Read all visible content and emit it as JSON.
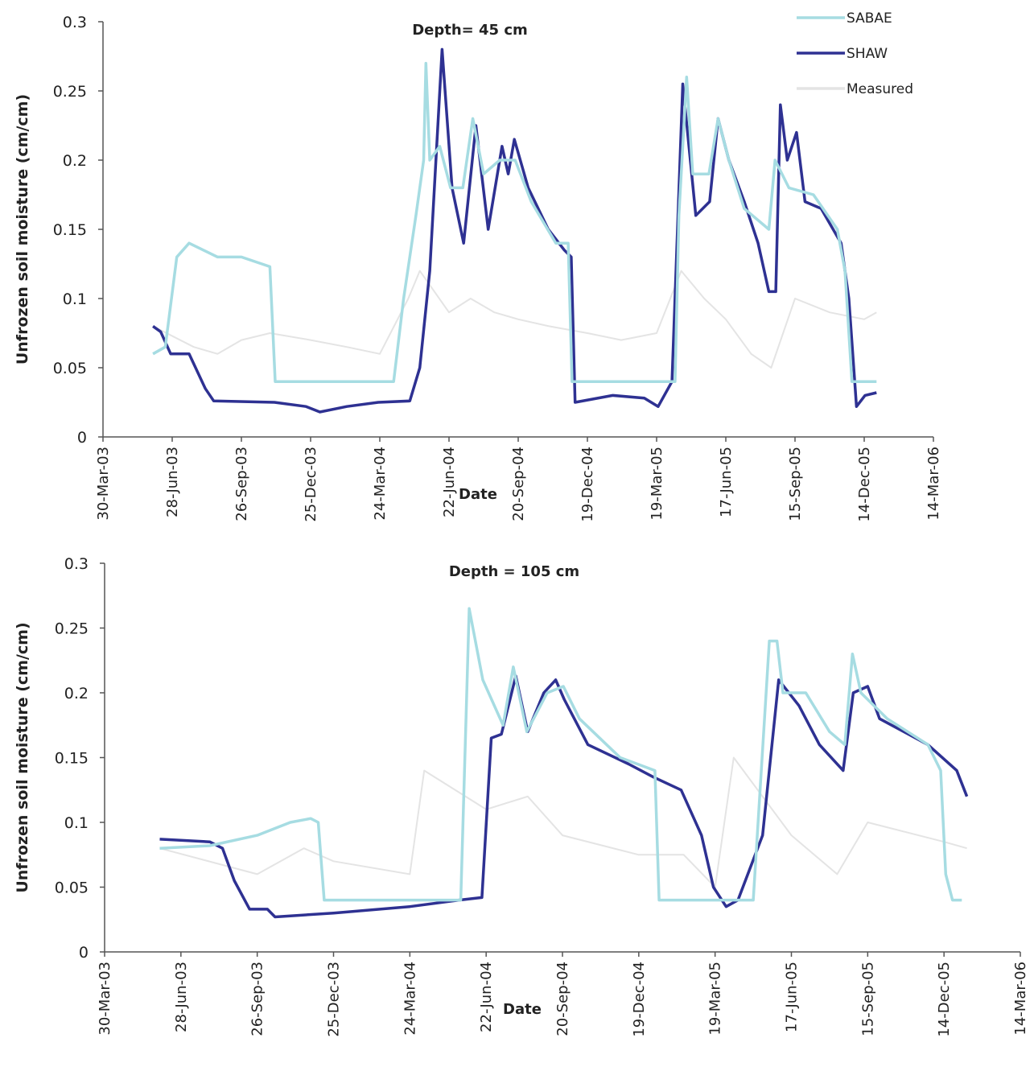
{
  "chart_data": [
    {
      "type": "line",
      "title": "Depth= 45 cm",
      "xlabel": "Date",
      "ylabel": "Unfrozen soil moisture (cm/cm)",
      "xlim": [
        "2003-03-30",
        "2006-03-14"
      ],
      "xticks": [
        {
          "value": "2003-03-30",
          "label": "30-Mar-03"
        },
        {
          "value": "2003-06-28",
          "label": "28-Jun-03"
        },
        {
          "value": "2003-09-26",
          "label": "26-Sep-03"
        },
        {
          "value": "2003-12-25",
          "label": "25-Dec-03"
        },
        {
          "value": "2004-03-24",
          "label": "24-Mar-04"
        },
        {
          "value": "2004-06-22",
          "label": "22-Jun-04"
        },
        {
          "value": "2004-09-20",
          "label": "20-Sep-04"
        },
        {
          "value": "2004-12-19",
          "label": "19-Dec-04"
        },
        {
          "value": "2005-03-19",
          "label": "19-Mar-05"
        },
        {
          "value": "2005-06-17",
          "label": "17-Jun-05"
        },
        {
          "value": "2005-09-15",
          "label": "15-Sep-05"
        },
        {
          "value": "2005-12-14",
          "label": "14-Dec-05"
        },
        {
          "value": "2006-03-14",
          "label": "14-Mar-06"
        }
      ],
      "ylim": [
        0,
        0.3
      ],
      "yticks": [
        0,
        0.05,
        0.1,
        0.15,
        0.2,
        0.25,
        0.3
      ],
      "legend": "top-right",
      "series": [
        {
          "name": "SABAE",
          "color": "#a6dce2",
          "x": [
            "2003-06-03",
            "2003-06-19",
            "2003-07-04",
            "2003-07-20",
            "2003-08-26",
            "2003-09-26",
            "2003-11-02",
            "2003-11-09",
            "2004-01-09",
            "2004-04-11",
            "2004-04-24",
            "2004-05-10",
            "2004-05-20",
            "2004-05-23",
            "2004-05-28",
            "2004-06-10",
            "2004-06-24",
            "2004-07-10",
            "2004-07-23",
            "2004-08-06",
            "2004-08-27",
            "2004-09-16",
            "2004-10-07",
            "2004-11-08",
            "2004-11-24",
            "2004-11-29",
            "2005-02-11",
            "2005-04-12",
            "2005-04-17",
            "2005-04-27",
            "2005-05-05",
            "2005-05-26",
            "2005-06-07",
            "2005-06-21",
            "2005-07-11",
            "2005-08-12",
            "2005-08-20",
            "2005-09-07",
            "2005-10-09",
            "2005-11-09",
            "2005-11-19",
            "2005-11-28",
            "2005-12-30"
          ],
          "values": [
            0.06,
            0.065,
            0.13,
            0.14,
            0.13,
            0.13,
            0.123,
            0.04,
            0.04,
            0.04,
            0.1,
            0.16,
            0.2,
            0.27,
            0.2,
            0.21,
            0.18,
            0.18,
            0.23,
            0.19,
            0.2,
            0.2,
            0.17,
            0.14,
            0.14,
            0.04,
            0.04,
            0.04,
            0.16,
            0.26,
            0.19,
            0.19,
            0.23,
            0.2,
            0.165,
            0.15,
            0.2,
            0.18,
            0.175,
            0.15,
            0.12,
            0.04,
            0.04
          ]
        },
        {
          "name": "SHAW",
          "color": "#2e3192",
          "x": [
            "2003-06-03",
            "2003-06-13",
            "2003-06-26",
            "2003-07-20",
            "2003-08-10",
            "2003-08-21",
            "2003-11-08",
            "2003-12-19",
            "2004-01-06",
            "2004-02-10",
            "2004-03-22",
            "2004-05-02",
            "2004-05-15",
            "2004-05-28",
            "2004-06-13",
            "2004-06-26",
            "2004-07-11",
            "2004-07-27",
            "2004-08-12",
            "2004-08-30",
            "2004-09-07",
            "2004-09-15",
            "2004-10-03",
            "2004-10-29",
            "2004-11-19",
            "2004-11-28",
            "2004-12-03",
            "2005-01-21",
            "2005-03-03",
            "2005-03-21",
            "2005-04-08",
            "2005-04-22",
            "2005-05-09",
            "2005-05-27",
            "2005-06-07",
            "2005-06-21",
            "2005-07-11",
            "2005-07-29",
            "2005-08-12",
            "2005-08-21",
            "2005-08-27",
            "2005-09-05",
            "2005-09-17",
            "2005-09-28",
            "2005-10-19",
            "2005-11-14",
            "2005-11-24",
            "2005-12-04",
            "2005-12-15",
            "2005-12-30"
          ],
          "values": [
            0.08,
            0.076,
            0.06,
            0.06,
            0.035,
            0.026,
            0.025,
            0.022,
            0.018,
            0.022,
            0.025,
            0.026,
            0.05,
            0.12,
            0.28,
            0.18,
            0.14,
            0.225,
            0.15,
            0.21,
            0.19,
            0.215,
            0.18,
            0.15,
            0.135,
            0.13,
            0.025,
            0.03,
            0.028,
            0.022,
            0.04,
            0.255,
            0.16,
            0.17,
            0.23,
            0.2,
            0.17,
            0.14,
            0.105,
            0.105,
            0.24,
            0.2,
            0.22,
            0.17,
            0.165,
            0.14,
            0.1,
            0.022,
            0.03,
            0.032
          ]
        },
        {
          "name": "Measured",
          "color": "#e4e4e4",
          "x": [
            "2003-06-03",
            "2003-07-26",
            "2003-08-26",
            "2003-09-26",
            "2003-11-02",
            "2003-12-25",
            "2004-02-10",
            "2004-03-24",
            "2004-04-30",
            "2004-05-15",
            "2004-06-22",
            "2004-07-20",
            "2004-08-20",
            "2004-09-20",
            "2004-10-30",
            "2004-12-19",
            "2005-02-01",
            "2005-03-19",
            "2005-04-20",
            "2005-05-20",
            "2005-06-17",
            "2005-07-20",
            "2005-08-15",
            "2005-09-15",
            "2005-10-30",
            "2005-12-14",
            "2005-12-30"
          ],
          "values": [
            0.08,
            0.065,
            0.06,
            0.07,
            0.075,
            0.07,
            0.065,
            0.06,
            0.1,
            0.12,
            0.09,
            0.1,
            0.09,
            0.085,
            0.08,
            0.075,
            0.07,
            0.075,
            0.12,
            0.1,
            0.085,
            0.06,
            0.05,
            0.1,
            0.09,
            0.085,
            0.09
          ]
        }
      ]
    },
    {
      "type": "line",
      "title": "Depth = 105 cm",
      "xlabel": "Date",
      "ylabel": "Unfrozen soil moisture (cm/cm)",
      "xlim": [
        "2003-03-30",
        "2006-03-14"
      ],
      "xticks": [
        {
          "value": "2003-03-30",
          "label": "30-Mar-03"
        },
        {
          "value": "2003-06-28",
          "label": "28-Jun-03"
        },
        {
          "value": "2003-09-26",
          "label": "26-Sep-03"
        },
        {
          "value": "2003-12-25",
          "label": "25-Dec-03"
        },
        {
          "value": "2004-03-24",
          "label": "24-Mar-04"
        },
        {
          "value": "2004-06-22",
          "label": "22-Jun-04"
        },
        {
          "value": "2004-09-20",
          "label": "20-Sep-04"
        },
        {
          "value": "2004-12-19",
          "label": "19-Dec-04"
        },
        {
          "value": "2005-03-19",
          "label": "19-Mar-05"
        },
        {
          "value": "2005-06-17",
          "label": "17-Jun-05"
        },
        {
          "value": "2005-09-15",
          "label": "15-Sep-05"
        },
        {
          "value": "2005-12-14",
          "label": "14-Dec-05"
        },
        {
          "value": "2006-03-14",
          "label": "14-Mar-06"
        }
      ],
      "ylim": [
        0,
        0.3
      ],
      "yticks": [
        0,
        0.05,
        0.1,
        0.15,
        0.2,
        0.25,
        0.3
      ],
      "series": [
        {
          "color": "#a6dce2",
          "x": [
            "2003-06-03",
            "2003-08-01",
            "2003-09-26",
            "2003-11-04",
            "2003-11-28",
            "2003-12-07",
            "2003-12-14",
            "2004-03-24",
            "2004-05-23",
            "2004-06-02",
            "2004-06-18",
            "2004-07-12",
            "2004-07-24",
            "2004-08-09",
            "2004-09-02",
            "2004-09-21",
            "2004-10-10",
            "2004-11-27",
            "2005-01-07",
            "2005-01-12",
            "2005-03-19",
            "2005-05-03",
            "2005-05-22",
            "2005-05-31",
            "2005-06-07",
            "2005-07-04",
            "2005-08-01",
            "2005-08-19",
            "2005-08-28",
            "2005-09-07",
            "2005-10-08",
            "2005-11-25",
            "2005-12-10",
            "2005-12-16",
            "2005-12-24",
            "2006-01-04"
          ],
          "values": [
            0.08,
            0.082,
            0.09,
            0.1,
            0.103,
            0.1,
            0.04,
            0.04,
            0.04,
            0.265,
            0.21,
            0.175,
            0.22,
            0.17,
            0.2,
            0.205,
            0.18,
            0.15,
            0.14,
            0.04,
            0.04,
            0.04,
            0.24,
            0.24,
            0.2,
            0.2,
            0.17,
            0.16,
            0.23,
            0.2,
            0.18,
            0.16,
            0.14,
            0.06,
            0.04,
            0.04
          ]
        },
        {
          "color": "#2e3192",
          "x": [
            "2003-06-03",
            "2003-08-01",
            "2003-08-16",
            "2003-08-30",
            "2003-09-17",
            "2003-10-08",
            "2003-10-17",
            "2003-12-25",
            "2004-03-24",
            "2004-05-21",
            "2004-06-17",
            "2004-06-28",
            "2004-07-10",
            "2004-07-27",
            "2004-08-10",
            "2004-08-29",
            "2004-09-12",
            "2004-09-22",
            "2004-10-20",
            "2004-12-07",
            "2005-01-05",
            "2005-02-07",
            "2005-03-03",
            "2005-03-17",
            "2005-04-01",
            "2005-04-15",
            "2005-05-14",
            "2005-06-02",
            "2005-06-26",
            "2005-07-20",
            "2005-08-17",
            "2005-08-29",
            "2005-09-15",
            "2005-09-29",
            "2005-11-25",
            "2005-12-29",
            "2006-01-10"
          ],
          "values": [
            0.087,
            0.085,
            0.08,
            0.055,
            0.033,
            0.033,
            0.027,
            0.03,
            0.035,
            0.04,
            0.042,
            0.165,
            0.168,
            0.213,
            0.17,
            0.2,
            0.21,
            0.195,
            0.16,
            0.145,
            0.135,
            0.125,
            0.09,
            0.05,
            0.035,
            0.04,
            0.09,
            0.21,
            0.19,
            0.16,
            0.14,
            0.2,
            0.205,
            0.18,
            0.16,
            0.14,
            0.12
          ]
        },
        {
          "color": "#e4e4e4",
          "x": [
            "2003-06-03",
            "2003-09-26",
            "2003-11-20",
            "2003-12-25",
            "2004-03-24",
            "2004-04-10",
            "2004-06-22",
            "2004-08-10",
            "2004-09-20",
            "2004-12-19",
            "2005-02-10",
            "2005-03-19",
            "2005-04-10",
            "2005-06-17",
            "2005-08-10",
            "2005-09-15",
            "2005-12-14",
            "2006-01-10"
          ],
          "values": [
            0.08,
            0.06,
            0.08,
            0.07,
            0.06,
            0.14,
            0.11,
            0.12,
            0.09,
            0.075,
            0.075,
            0.05,
            0.15,
            0.09,
            0.06,
            0.1,
            0.085,
            0.08
          ]
        }
      ]
    }
  ]
}
